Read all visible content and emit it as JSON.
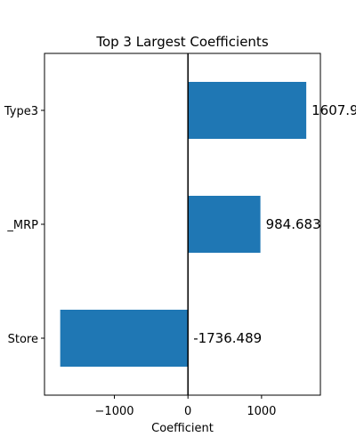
{
  "chart_data": {
    "type": "bar",
    "orientation": "horizontal",
    "title": "Top 3 Largest Coefficients",
    "xlabel": "Coefficient",
    "ylabel": "",
    "categories": [
      "Type3",
      "_MRP",
      "Store"
    ],
    "values": [
      1607.9,
      984.683,
      -1736.489
    ],
    "value_labels": [
      "1607.9",
      "984.683",
      "-1736.489"
    ],
    "xlim": [
      -1950,
      1800
    ],
    "xticks": [
      -1000,
      0,
      1000
    ],
    "xtick_labels": [
      "−1000",
      "0",
      "1000"
    ],
    "zero_line": true,
    "grid": false,
    "bar_color": "#1f77b4"
  }
}
